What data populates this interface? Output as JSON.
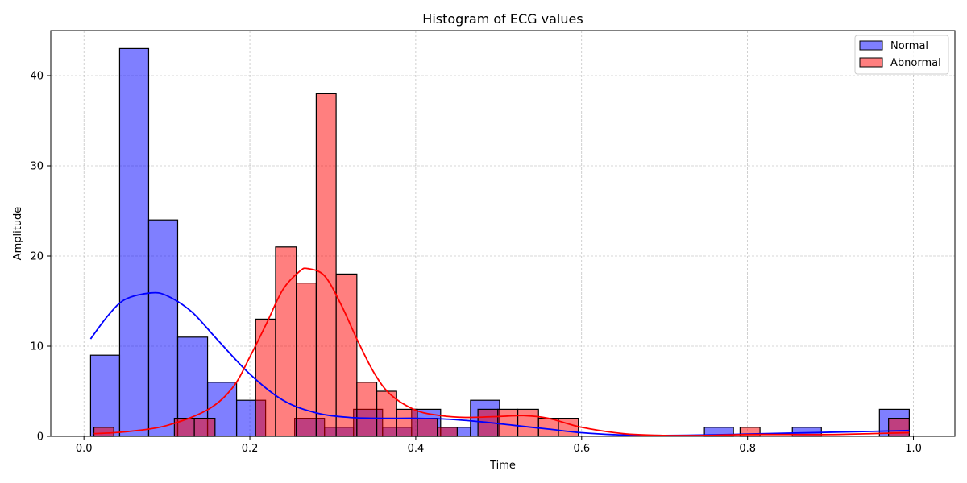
{
  "chart_data": {
    "type": "bar",
    "title": "Histogram of ECG values",
    "xlabel": "Time",
    "ylabel": "Amplitude",
    "xlim": [
      -0.04,
      1.05
    ],
    "ylim": [
      0,
      45
    ],
    "xticks": [
      0.0,
      0.2,
      0.4,
      0.6,
      0.8,
      1.0
    ],
    "xtick_labels": [
      "0.0",
      "0.2",
      "0.4",
      "0.6",
      "0.8",
      "1.0"
    ],
    "yticks": [
      0,
      10,
      20,
      30,
      40
    ],
    "ytick_labels": [
      "0",
      "10",
      "20",
      "30",
      "40"
    ],
    "grid": true,
    "legend_position": "top-right",
    "series": [
      {
        "name": "Normal",
        "color": "#8080ff",
        "kde_color": "#0000ff",
        "bins": [
          {
            "x0": 0.008,
            "x1": 0.043,
            "count": 9
          },
          {
            "x0": 0.043,
            "x1": 0.078,
            "count": 43
          },
          {
            "x0": 0.078,
            "x1": 0.113,
            "count": 24
          },
          {
            "x0": 0.113,
            "x1": 0.149,
            "count": 11
          },
          {
            "x0": 0.149,
            "x1": 0.184,
            "count": 6
          },
          {
            "x0": 0.184,
            "x1": 0.219,
            "count": 4
          },
          {
            "x0": 0.254,
            "x1": 0.29,
            "count": 2
          },
          {
            "x0": 0.29,
            "x1": 0.325,
            "count": 1
          },
          {
            "x0": 0.325,
            "x1": 0.36,
            "count": 3
          },
          {
            "x0": 0.36,
            "x1": 0.395,
            "count": 1
          },
          {
            "x0": 0.395,
            "x1": 0.43,
            "count": 3
          },
          {
            "x0": 0.43,
            "x1": 0.466,
            "count": 1
          },
          {
            "x0": 0.466,
            "x1": 0.501,
            "count": 4
          },
          {
            "x0": 0.748,
            "x1": 0.783,
            "count": 1
          },
          {
            "x0": 0.854,
            "x1": 0.889,
            "count": 1
          },
          {
            "x0": 0.959,
            "x1": 0.995,
            "count": 3
          }
        ],
        "kde_x": [
          0.008,
          0.03,
          0.05,
          0.08,
          0.1,
          0.13,
          0.16,
          0.2,
          0.24,
          0.28,
          0.32,
          0.36,
          0.4,
          0.44,
          0.48,
          0.52,
          0.56,
          0.6,
          0.65,
          0.7,
          0.75,
          0.8,
          0.85,
          0.9,
          0.95,
          0.995
        ],
        "kde_y": [
          10.8,
          13.5,
          15.2,
          15.9,
          15.6,
          13.8,
          10.8,
          6.9,
          4.0,
          2.6,
          2.1,
          2.0,
          2.0,
          1.9,
          1.6,
          1.2,
          0.8,
          0.4,
          0.15,
          0.1,
          0.15,
          0.25,
          0.35,
          0.45,
          0.55,
          0.65
        ]
      },
      {
        "name": "Abnormal",
        "color": "#ff8080",
        "kde_color": "#ff0000",
        "bins": [
          {
            "x0": 0.012,
            "x1": 0.036,
            "count": 1
          },
          {
            "x0": 0.109,
            "x1": 0.133,
            "count": 2
          },
          {
            "x0": 0.133,
            "x1": 0.158,
            "count": 2
          },
          {
            "x0": 0.207,
            "x1": 0.231,
            "count": 13
          },
          {
            "x0": 0.231,
            "x1": 0.256,
            "count": 21
          },
          {
            "x0": 0.256,
            "x1": 0.28,
            "count": 17
          },
          {
            "x0": 0.28,
            "x1": 0.304,
            "count": 38
          },
          {
            "x0": 0.304,
            "x1": 0.329,
            "count": 18
          },
          {
            "x0": 0.329,
            "x1": 0.353,
            "count": 6
          },
          {
            "x0": 0.353,
            "x1": 0.377,
            "count": 5
          },
          {
            "x0": 0.377,
            "x1": 0.402,
            "count": 3
          },
          {
            "x0": 0.402,
            "x1": 0.426,
            "count": 2
          },
          {
            "x0": 0.426,
            "x1": 0.45,
            "count": 1
          },
          {
            "x0": 0.475,
            "x1": 0.499,
            "count": 3
          },
          {
            "x0": 0.499,
            "x1": 0.523,
            "count": 3
          },
          {
            "x0": 0.523,
            "x1": 0.548,
            "count": 3
          },
          {
            "x0": 0.548,
            "x1": 0.572,
            "count": 2
          },
          {
            "x0": 0.572,
            "x1": 0.596,
            "count": 2
          },
          {
            "x0": 0.791,
            "x1": 0.815,
            "count": 1
          },
          {
            "x0": 0.97,
            "x1": 0.995,
            "count": 2
          }
        ],
        "kde_x": [
          0.012,
          0.05,
          0.1,
          0.15,
          0.18,
          0.2,
          0.22,
          0.24,
          0.26,
          0.27,
          0.29,
          0.31,
          0.33,
          0.35,
          0.37,
          0.4,
          0.43,
          0.46,
          0.5,
          0.53,
          0.56,
          0.6,
          0.65,
          0.7,
          0.75,
          0.8,
          0.85,
          0.9,
          0.95,
          0.995
        ],
        "kde_y": [
          0.3,
          0.5,
          1.2,
          3.0,
          5.5,
          8.8,
          12.5,
          16.3,
          18.3,
          18.6,
          17.8,
          14.6,
          10.6,
          7.0,
          4.6,
          2.9,
          2.3,
          2.1,
          2.2,
          2.3,
          2.0,
          1.0,
          0.3,
          0.1,
          0.1,
          0.2,
          0.2,
          0.2,
          0.3,
          0.4
        ]
      }
    ]
  }
}
